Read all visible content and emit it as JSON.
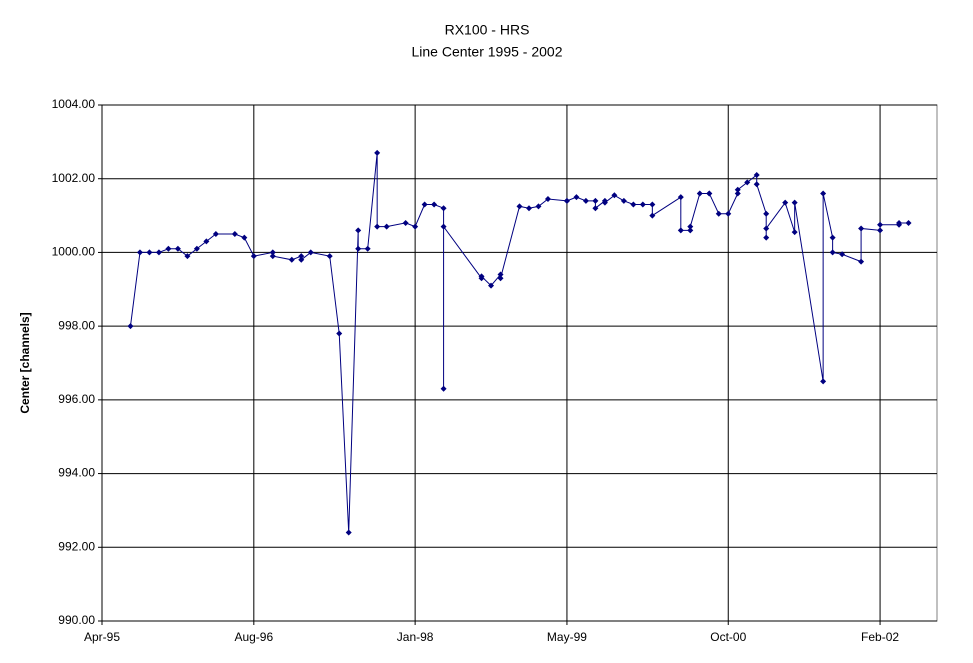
{
  "chart_data": {
    "type": "line",
    "title": "RX100 - HRS",
    "subtitle": "Line Center 1995 - 2002",
    "y_label": "Center [channels]",
    "color": "#000080",
    "grid": true,
    "marker": "diamond",
    "xlim": [
      "1995-04",
      "2002-08"
    ],
    "xticks": [
      {
        "value": "1995-04",
        "label": "Apr-95"
      },
      {
        "value": "1996-08",
        "label": "Aug-96"
      },
      {
        "value": "1998-01",
        "label": "Jan-98"
      },
      {
        "value": "1999-05",
        "label": "May-99"
      },
      {
        "value": "2000-10",
        "label": "Oct-00"
      },
      {
        "value": "2002-02",
        "label": "Feb-02"
      }
    ],
    "ylim": [
      990,
      1004
    ],
    "yticks": [
      {
        "value": 990,
        "label": "990.00"
      },
      {
        "value": 992,
        "label": "992.00"
      },
      {
        "value": 994,
        "label": "994.00"
      },
      {
        "value": 996,
        "label": "996.00"
      },
      {
        "value": 998,
        "label": "998.00"
      },
      {
        "value": 1000,
        "label": "1000.00"
      },
      {
        "value": 1002,
        "label": "1002.00"
      },
      {
        "value": 1004,
        "label": "1004.00"
      }
    ],
    "x": [
      "1995-07",
      "1995-08",
      "1995-09",
      "1995-10",
      "1995-11",
      "1995-12",
      "1996-01",
      "1996-02",
      "1996-03",
      "1996-04",
      "1996-06",
      "1996-07",
      "1996-08",
      "1996-10",
      "1996-10",
      "1996-12",
      "1997-01",
      "1997-01",
      "1997-02",
      "1997-04",
      "1997-05",
      "1997-06",
      "1997-07",
      "1997-07",
      "1997-08",
      "1997-09",
      "1997-09",
      "1997-10",
      "1997-12",
      "1998-01",
      "1998-02",
      "1998-03",
      "1998-04",
      "1998-04",
      "1998-04",
      "1998-08",
      "1998-08",
      "1998-09",
      "1998-10",
      "1998-10",
      "1998-12",
      "1999-01",
      "1999-02",
      "1999-03",
      "1999-05",
      "1999-05",
      "1999-06",
      "1999-07",
      "1999-08",
      "1999-08",
      "1999-09",
      "1999-09",
      "1999-10",
      "1999-11",
      "1999-12",
      "2000-01",
      "2000-02",
      "2000-02",
      "2000-05",
      "2000-05",
      "2000-06",
      "2000-06",
      "2000-07",
      "2000-08",
      "2000-08",
      "2000-09",
      "2000-10",
      "2000-11",
      "2000-11",
      "2000-12",
      "2001-01",
      "2001-01",
      "2001-02",
      "2001-02",
      "2001-02",
      "2001-04",
      "2001-05",
      "2001-05",
      "2001-08",
      "2001-08",
      "2001-09",
      "2001-09",
      "2001-10",
      "2001-12",
      "2001-12",
      "2002-02",
      "2002-02",
      "2002-04",
      "2002-04",
      "2002-05"
    ],
    "values": [
      998.0,
      1000.0,
      1000.0,
      1000.0,
      1000.1,
      1000.1,
      999.9,
      1000.1,
      1000.3,
      1000.5,
      1000.5,
      1000.4,
      999.9,
      1000.0,
      999.9,
      999.8,
      999.9,
      999.8,
      1000.0,
      999.9,
      997.8,
      992.4,
      1000.6,
      1000.1,
      1000.1,
      1002.7,
      1000.7,
      1000.7,
      1000.8,
      1000.7,
      1001.3,
      1001.3,
      1001.2,
      996.3,
      1000.7,
      999.3,
      999.35,
      999.1,
      999.4,
      999.3,
      1001.25,
      1001.2,
      1001.25,
      1001.45,
      1001.4,
      1001.4,
      1001.5,
      1001.4,
      1001.4,
      1001.2,
      1001.4,
      1001.35,
      1001.55,
      1001.4,
      1001.3,
      1001.3,
      1001.3,
      1001.0,
      1001.5,
      1000.6,
      1000.6,
      1000.7,
      1001.6,
      1001.6,
      1001.6,
      1001.05,
      1001.05,
      1001.6,
      1001.7,
      1001.9,
      1002.1,
      1001.85,
      1001.05,
      1000.4,
      1000.65,
      1001.35,
      1000.55,
      1001.35,
      996.5,
      1001.6,
      1000.4,
      1000.0,
      999.95,
      999.75,
      1000.65,
      1000.6,
      1000.75,
      1000.75,
      1000.8,
      1000.8
    ]
  }
}
